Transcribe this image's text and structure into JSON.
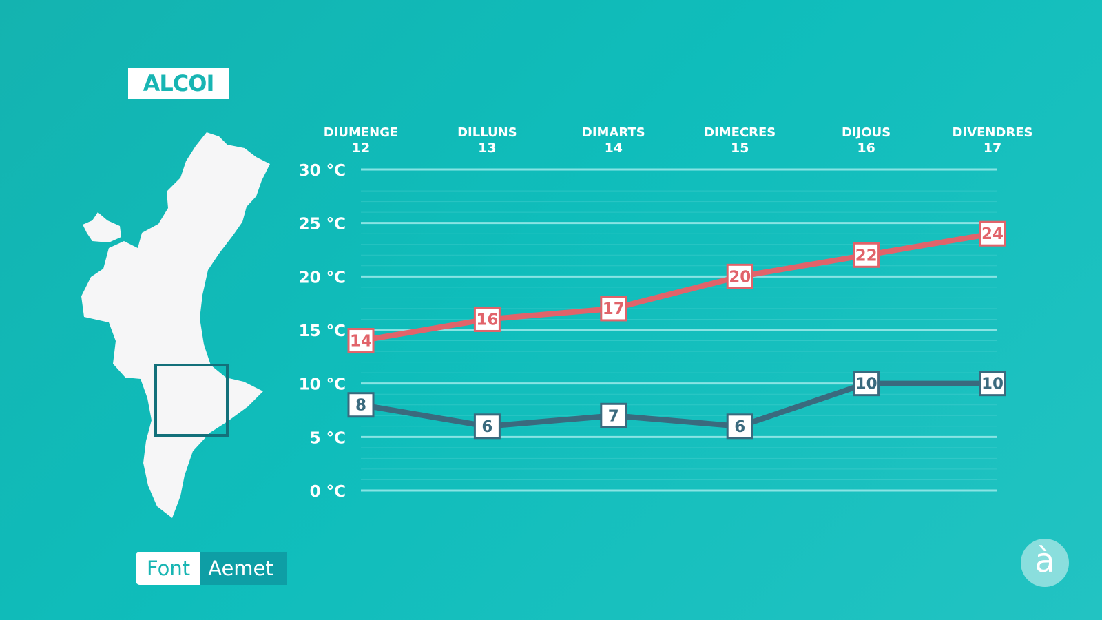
{
  "location": {
    "name": "ALCOI"
  },
  "source": {
    "label": "Font",
    "value": "Aemet"
  },
  "logo": {
    "glyph": "à"
  },
  "colors": {
    "max_series": "#e1636a",
    "min_series": "#3a6a7e",
    "grid": "#8fe6e6"
  },
  "chart_data": {
    "type": "line",
    "categories": [
      {
        "day": "DIUMENGE",
        "date": "12"
      },
      {
        "day": "DILLUNS",
        "date": "13"
      },
      {
        "day": "DIMARTS",
        "date": "14"
      },
      {
        "day": "DIMECRES",
        "date": "15"
      },
      {
        "day": "DIJOUS",
        "date": "16"
      },
      {
        "day": "DIVENDRES",
        "date": "17"
      }
    ],
    "y_ticks": [
      "0 °C",
      "5 °C",
      "10 °C",
      "15 °C",
      "20 °C",
      "25 °C",
      "30 °C"
    ],
    "ylim": [
      0,
      30
    ],
    "grid": true,
    "series": [
      {
        "values": [
          14,
          16,
          17,
          20,
          22,
          24
        ],
        "color": "#e1636a"
      },
      {
        "values": [
          8,
          6,
          7,
          6,
          10,
          10
        ],
        "color": "#3a6a7e"
      }
    ]
  }
}
